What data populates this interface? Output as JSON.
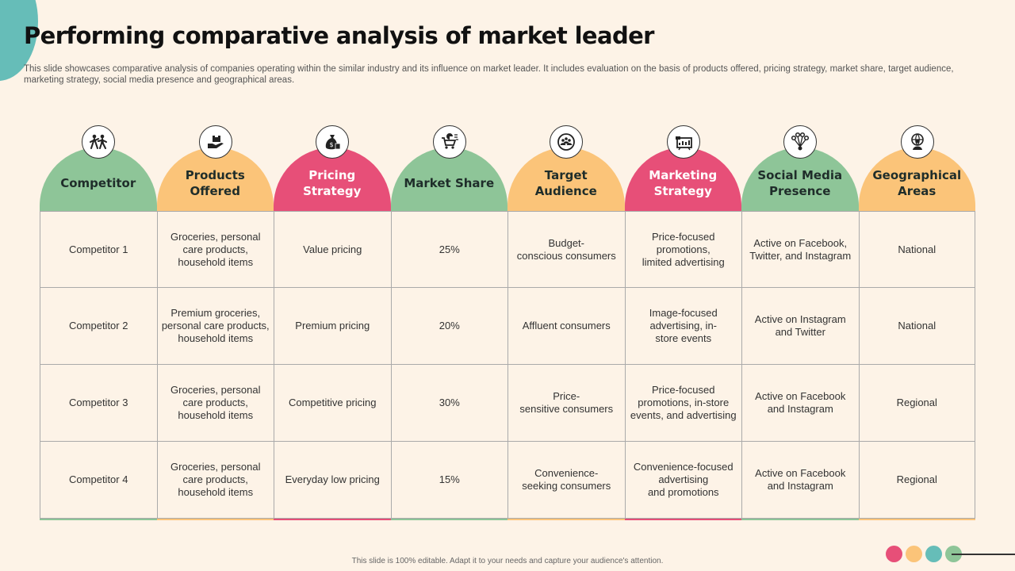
{
  "title": "Performing comparative analysis of market leader",
  "subtitle": "This slide showcases comparative analysis of companies operating within the similar industry and its influence on market leader. It includes evaluation on the basis of products offered, pricing strategy, market share, target audience, marketing strategy, social media presence and geographical areas.",
  "colors": {
    "green": "#8ec598",
    "orange": "#fbc479",
    "red": "#e74f78",
    "teal": "#66bdb8",
    "background": "#fdf3e7"
  },
  "columns": [
    {
      "header": "Competitor",
      "icon": "people-icon",
      "color": "green",
      "cells": [
        "Competitor  1",
        "Competitor  2",
        "Competitor  3",
        "Competitor  4"
      ]
    },
    {
      "header": "Products Offered",
      "icon": "hand-box-icon",
      "color": "orange",
      "cells": [
        "Groceries,  personal\ncare products,\nhousehold items",
        "Premium groceries,\npersonal care products,\nhousehold items",
        "Groceries,  personal\ncare products,\nhousehold items",
        "Groceries,  personal\ncare products,\nhousehold items"
      ]
    },
    {
      "header": "Pricing Strategy",
      "icon": "money-bag-icon",
      "color": "red",
      "cells": [
        "Value pricing",
        "Premium pricing",
        "Competitive  pricing",
        "Everyday low pricing"
      ]
    },
    {
      "header": "Market Share",
      "icon": "cart-chart-icon",
      "color": "green",
      "cells": [
        "25%",
        "20%",
        "30%",
        "15%"
      ]
    },
    {
      "header": "Target Audience",
      "icon": "audience-icon",
      "color": "orange",
      "cells": [
        "Budget-\nconscious consumers",
        "Affluent consumers",
        "Price-\nsensitive consumers",
        "Convenience-\nseeking consumers"
      ]
    },
    {
      "header": "Marketing Strategy",
      "icon": "presentation-icon",
      "color": "red",
      "cells": [
        "Price-focused\npromotions,\nlimited advertising",
        "Image-focused\nadvertising,  in-\nstore events",
        "Price-focused\npromotions,  in-store\nevents,  and advertising",
        "Convenience-focused\nadvertising\nand promotions"
      ]
    },
    {
      "header": "Social Media Presence",
      "icon": "network-icon",
      "color": "green",
      "cells": [
        "Active on Facebook,\nTwitter,  and Instagram",
        "Active on Instagram\nand Twitter",
        "Active on Facebook\nand Instagram",
        "Active on Facebook\nand Instagram"
      ]
    },
    {
      "header": "Geographical Areas",
      "icon": "globe-person-icon",
      "color": "orange",
      "cells": [
        "National",
        "National",
        "Regional",
        "Regional"
      ]
    }
  ],
  "footnote": "This slide is 100% editable.  Adapt it to your needs and capture your audience's attention."
}
